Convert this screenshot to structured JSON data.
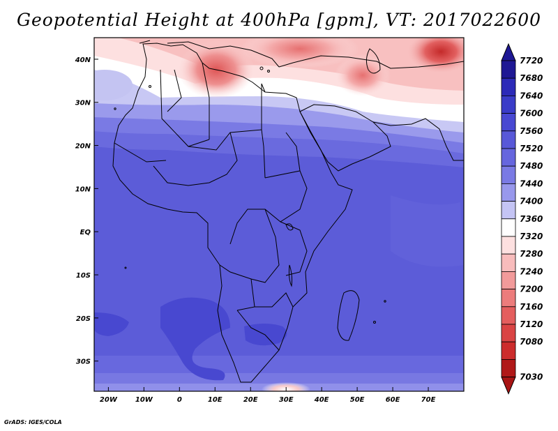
{
  "title": "Geopotential Height at 400hPa [gpm], VT: 2017022600",
  "credit": "GrADS: IGES/COLA",
  "map": {
    "lon_range": [
      -24,
      80
    ],
    "lat_range": [
      -37,
      45
    ],
    "lon_ticks": [
      "20W",
      "10W",
      "0",
      "10E",
      "20E",
      "30E",
      "40E",
      "50E",
      "60E",
      "70E"
    ],
    "lat_ticks": [
      "40N",
      "30N",
      "20N",
      "10N",
      "EQ",
      "10S",
      "20S",
      "30S"
    ],
    "region": "Africa, Mediterranean and Middle East"
  },
  "colorbar": {
    "levels": [
      "7720",
      "7680",
      "7640",
      "7600",
      "7560",
      "7520",
      "7480",
      "7440",
      "7400",
      "7360",
      "7320",
      "7280",
      "7240",
      "7200",
      "7160",
      "7120",
      "7080",
      "7030"
    ],
    "colors": [
      "#1e1894",
      "#2c2ab8",
      "#3a3cc8",
      "#4848d2",
      "#5858d8",
      "#6666de",
      "#7a7ae4",
      "#9898ec",
      "#c4c4f4",
      "#ffffff",
      "#fde0e0",
      "#f8bcbc",
      "#f29a9a",
      "#ec7c7c",
      "#e45e5e",
      "#da4444",
      "#cc2c2c",
      "#b01818"
    ]
  }
}
